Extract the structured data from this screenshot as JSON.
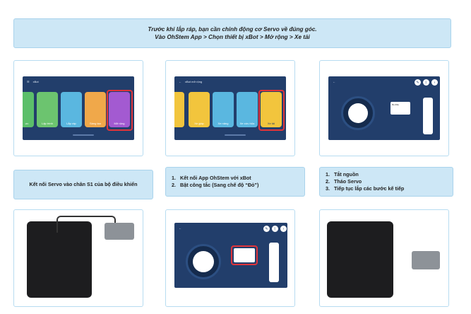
{
  "banner": {
    "line1": "Trước khi lắp ráp, bạn cần chỉnh động cơ Servo về đúng góc.",
    "line2": "Vào OhStem App > Chọn thiết bị xBot > Mở rộng >  Xe tải"
  },
  "screens": {
    "home": {
      "title": "xBot",
      "tiles": [
        "Lập trình",
        "Lắp ráp",
        "Sáng tạo",
        "Mở rộng"
      ],
      "partial_left": "ực"
    },
    "extend": {
      "title": "xBot mở rộng",
      "tiles": [
        "Xe giáp",
        "Xe nâng",
        "Xe cứu hỏa",
        "Xe tải"
      ]
    },
    "servo": {
      "tiny_label": "Bộ điều"
    }
  },
  "steps": {
    "step_a": "Kết nối Servo vào chân S1 của bộ điều khiển",
    "step_b": [
      "Kết nối App OhStem với xBot",
      "Bật công tắc (Sang chế độ “Đỏ”)"
    ],
    "step_c": [
      "Tắt nguồn",
      "Tháo Servo",
      "Tiếp tục lắp các bước kế tiếp"
    ]
  },
  "colors": {
    "banner_bg": "#cde7f6",
    "app_bg": "#223e6b",
    "highlight": "#e0343a"
  }
}
